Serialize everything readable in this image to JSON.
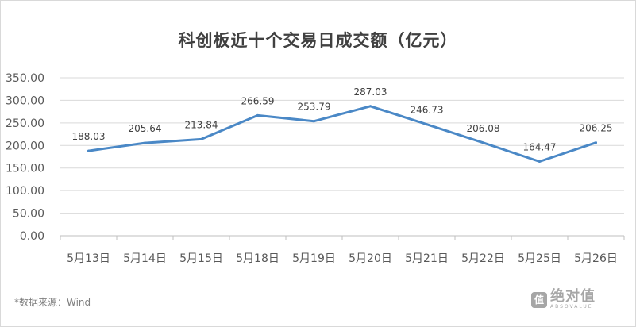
{
  "chart_data": {
    "type": "line",
    "title": "科创板近十个交易日成交额（亿元）",
    "categories": [
      "5月13日",
      "5月14日",
      "5月15日",
      "5月18日",
      "5月19日",
      "5月20日",
      "5月21日",
      "5月22日",
      "5月25日",
      "5月26日"
    ],
    "series": [
      {
        "values": [
          188.03,
          205.64,
          213.84,
          266.59,
          253.79,
          287.03,
          246.73,
          206.08,
          164.47,
          206.25
        ]
      }
    ],
    "data_labels": [
      "188.03",
      "205.64",
      "213.84",
      "266.59",
      "253.79",
      "287.03",
      "246.73",
      "206.08",
      "164.47",
      "206.25"
    ],
    "ylim": [
      0,
      350
    ],
    "yticks": [
      0,
      50,
      100,
      150,
      200,
      250,
      300,
      350
    ],
    "ytick_labels": [
      "0.00",
      "50.00",
      "100.00",
      "150.00",
      "200.00",
      "250.00",
      "300.00",
      "350.00"
    ],
    "grid": true,
    "line_color": "#4a88c6"
  },
  "source": "*数据来源：Wind",
  "watermark": {
    "icon_glyph": "值",
    "text": "绝对值",
    "subtext": "ABSOVALUE",
    "icon": "brand-logo-icon"
  }
}
